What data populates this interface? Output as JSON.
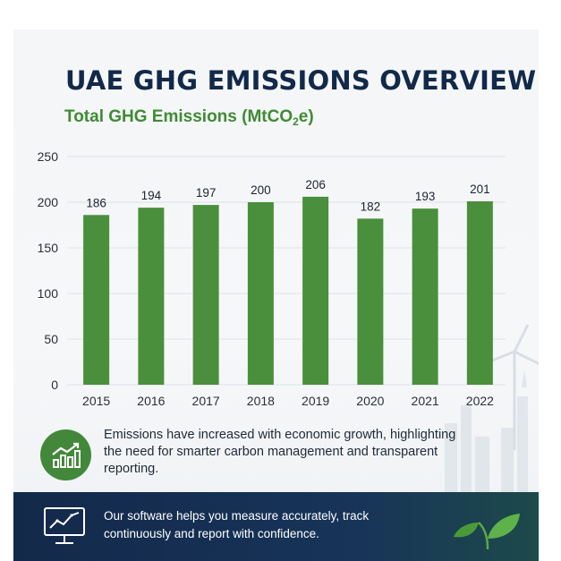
{
  "header": {
    "title": "UAE GHG EMISSIONS OVERVIEW",
    "subtitle_pre": "Total GHG Emissions (MtCO",
    "subtitle_sub": "2",
    "subtitle_post": "e)"
  },
  "chart_data": {
    "type": "bar",
    "categories": [
      "2015",
      "2016",
      "2017",
      "2018",
      "2019",
      "2020",
      "2021",
      "2022"
    ],
    "values": [
      186,
      194,
      197,
      200,
      206,
      182,
      193,
      201
    ],
    "ylim": [
      0,
      250
    ],
    "yticks": [
      0,
      50,
      100,
      150,
      200,
      250
    ],
    "grid": true,
    "bar_color": "#4a8f3c",
    "data_labels": true
  },
  "insight": {
    "icon": "growth-chart-icon",
    "text": "Emissions have increased with economic growth, highlighting the need for smarter carbon management and transparent reporting."
  },
  "footer": {
    "icon": "monitor-chart-icon",
    "text": "Our software helps you measure accurately, track continuously and report with confidence.",
    "decor_icon": "leaves-icon"
  },
  "colors": {
    "title": "#12294a",
    "accent_green": "#3f8b33",
    "footer_bg": "#13294a"
  }
}
